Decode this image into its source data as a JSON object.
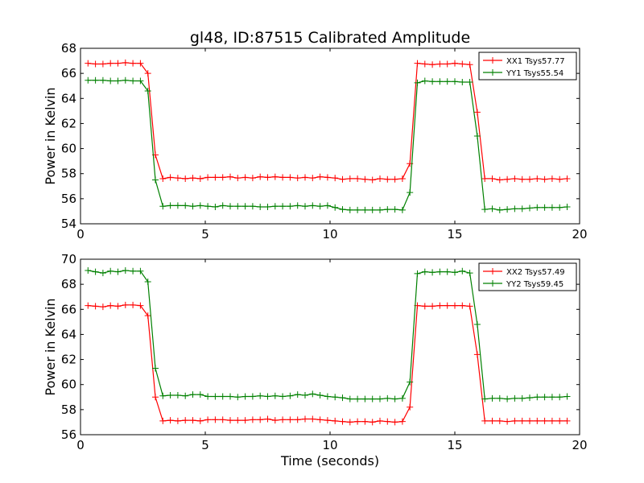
{
  "chart_data": [
    {
      "type": "line",
      "title": "gl48, ID:87515 Calibrated Amplitude",
      "xlabel": "",
      "ylabel": "Power in Kelvin",
      "xlim": [
        0,
        20
      ],
      "ylim": [
        54,
        68
      ],
      "xticks": [
        "0",
        "5",
        "10",
        "15",
        "20"
      ],
      "yticks": [
        "54",
        "56",
        "58",
        "60",
        "62",
        "64",
        "66",
        "68"
      ],
      "grid": false,
      "legend_position": "top-right",
      "x": [
        0.3,
        0.6,
        0.9,
        1.2,
        1.5,
        1.8,
        2.1,
        2.4,
        2.7,
        3.0,
        3.3,
        3.6,
        3.9,
        4.2,
        4.5,
        4.8,
        5.1,
        5.4,
        5.7,
        6.0,
        6.3,
        6.6,
        6.9,
        7.2,
        7.5,
        7.8,
        8.1,
        8.4,
        8.7,
        9.0,
        9.3,
        9.6,
        9.9,
        10.2,
        10.5,
        10.8,
        11.1,
        11.4,
        11.7,
        12.0,
        12.3,
        12.6,
        12.9,
        13.2,
        13.5,
        13.8,
        14.1,
        14.4,
        14.7,
        15.0,
        15.3,
        15.6,
        15.9,
        16.2,
        16.5,
        16.8,
        17.1,
        17.4,
        17.7,
        18.0,
        18.3,
        18.6,
        18.9,
        19.2,
        19.5
      ],
      "series": [
        {
          "name": "XX1 Tsys57.77",
          "color": "#ff0000",
          "values": [
            66.8,
            66.75,
            66.75,
            66.8,
            66.8,
            66.85,
            66.8,
            66.8,
            66.0,
            59.5,
            57.6,
            57.7,
            57.65,
            57.6,
            57.65,
            57.6,
            57.7,
            57.7,
            57.7,
            57.75,
            57.65,
            57.7,
            57.65,
            57.75,
            57.7,
            57.75,
            57.7,
            57.7,
            57.65,
            57.7,
            57.65,
            57.75,
            57.7,
            57.65,
            57.55,
            57.6,
            57.6,
            57.55,
            57.5,
            57.6,
            57.55,
            57.55,
            57.6,
            58.8,
            66.8,
            66.75,
            66.7,
            66.75,
            66.75,
            66.8,
            66.75,
            66.7,
            62.9,
            57.6,
            57.6,
            57.5,
            57.55,
            57.6,
            57.55,
            57.55,
            57.6,
            57.55,
            57.6,
            57.55,
            57.6
          ]
        },
        {
          "name": "YY1 Tsys55.54",
          "color": "#008000",
          "values": [
            65.45,
            65.45,
            65.45,
            65.4,
            65.4,
            65.45,
            65.4,
            65.4,
            64.6,
            57.5,
            55.4,
            55.45,
            55.45,
            55.45,
            55.4,
            55.45,
            55.4,
            55.35,
            55.45,
            55.4,
            55.4,
            55.4,
            55.4,
            55.35,
            55.35,
            55.4,
            55.4,
            55.4,
            55.45,
            55.4,
            55.45,
            55.4,
            55.45,
            55.3,
            55.15,
            55.1,
            55.1,
            55.1,
            55.1,
            55.1,
            55.15,
            55.15,
            55.1,
            56.5,
            65.25,
            65.4,
            65.35,
            65.35,
            65.35,
            65.35,
            65.3,
            65.3,
            61.0,
            55.15,
            55.2,
            55.1,
            55.15,
            55.2,
            55.2,
            55.25,
            55.3,
            55.3,
            55.3,
            55.3,
            55.35
          ]
        }
      ]
    },
    {
      "type": "line",
      "title": "",
      "xlabel": "Time (seconds)",
      "ylabel": "Power in Kelvin",
      "xlim": [
        0,
        20
      ],
      "ylim": [
        56,
        70
      ],
      "xticks": [
        "0",
        "5",
        "10",
        "15",
        "20"
      ],
      "yticks": [
        "56",
        "58",
        "60",
        "62",
        "64",
        "66",
        "68",
        "70"
      ],
      "grid": false,
      "legend_position": "top-right",
      "x": [
        0.3,
        0.6,
        0.9,
        1.2,
        1.5,
        1.8,
        2.1,
        2.4,
        2.7,
        3.0,
        3.3,
        3.6,
        3.9,
        4.2,
        4.5,
        4.8,
        5.1,
        5.4,
        5.7,
        6.0,
        6.3,
        6.6,
        6.9,
        7.2,
        7.5,
        7.8,
        8.1,
        8.4,
        8.7,
        9.0,
        9.3,
        9.6,
        9.9,
        10.2,
        10.5,
        10.8,
        11.1,
        11.4,
        11.7,
        12.0,
        12.3,
        12.6,
        12.9,
        13.2,
        13.5,
        13.8,
        14.1,
        14.4,
        14.7,
        15.0,
        15.3,
        15.6,
        15.9,
        16.2,
        16.5,
        16.8,
        17.1,
        17.4,
        17.7,
        18.0,
        18.3,
        18.6,
        18.9,
        19.2,
        19.5
      ],
      "series": [
        {
          "name": "XX2 Tsys57.49",
          "color": "#ff0000",
          "values": [
            66.3,
            66.25,
            66.2,
            66.3,
            66.25,
            66.35,
            66.35,
            66.3,
            65.5,
            59.0,
            57.1,
            57.15,
            57.1,
            57.15,
            57.15,
            57.1,
            57.2,
            57.2,
            57.2,
            57.15,
            57.15,
            57.15,
            57.2,
            57.2,
            57.25,
            57.15,
            57.2,
            57.2,
            57.2,
            57.25,
            57.25,
            57.2,
            57.15,
            57.1,
            57.05,
            57.0,
            57.05,
            57.05,
            57.0,
            57.1,
            57.05,
            57.0,
            57.05,
            58.2,
            66.3,
            66.25,
            66.25,
            66.3,
            66.3,
            66.3,
            66.3,
            66.25,
            62.4,
            57.1,
            57.1,
            57.1,
            57.05,
            57.1,
            57.1,
            57.1,
            57.1,
            57.1,
            57.1,
            57.1,
            57.1
          ]
        },
        {
          "name": "YY2 Tsys59.45",
          "color": "#008000",
          "values": [
            69.1,
            69.0,
            68.9,
            69.05,
            69.0,
            69.1,
            69.05,
            69.05,
            68.2,
            61.3,
            59.1,
            59.15,
            59.15,
            59.1,
            59.2,
            59.2,
            59.05,
            59.05,
            59.05,
            59.05,
            59.0,
            59.05,
            59.05,
            59.1,
            59.05,
            59.1,
            59.05,
            59.1,
            59.2,
            59.15,
            59.25,
            59.15,
            59.05,
            59.0,
            58.95,
            58.85,
            58.85,
            58.85,
            58.85,
            58.85,
            58.9,
            58.85,
            58.9,
            60.2,
            68.85,
            69.0,
            68.95,
            69.0,
            69.0,
            68.95,
            69.05,
            68.9,
            64.8,
            58.85,
            58.9,
            58.9,
            58.85,
            58.9,
            58.9,
            58.95,
            59.0,
            59.0,
            59.0,
            59.0,
            59.05
          ]
        }
      ]
    }
  ]
}
